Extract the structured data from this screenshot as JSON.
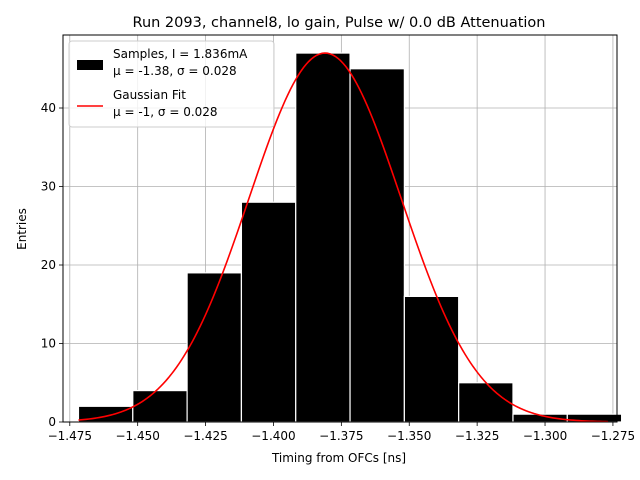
{
  "chart_data": {
    "type": "bar",
    "title": "Run 2093, channel8, lo gain, Pulse w/ 0.0 dB Attenuation",
    "xlabel": "Timing from OFCs [ns]",
    "ylabel": "Entries",
    "xlim": [
      -1.4775,
      -1.2735
    ],
    "ylim": [
      0,
      49.3
    ],
    "xticks": [
      -1.475,
      -1.45,
      -1.425,
      -1.4,
      -1.375,
      -1.35,
      -1.325,
      -1.3,
      -1.275
    ],
    "xtick_labels": [
      "−1.475",
      "−1.450",
      "−1.425",
      "−1.400",
      "−1.375",
      "−1.350",
      "−1.325",
      "−1.300",
      "−1.275"
    ],
    "yticks": [
      0,
      10,
      20,
      30,
      40
    ],
    "ytick_labels": [
      "0",
      "10",
      "20",
      "30",
      "40"
    ],
    "grid": true,
    "bin_edges": [
      -1.4718,
      -1.4518,
      -1.4318,
      -1.4118,
      -1.3918,
      -1.3718,
      -1.3518,
      -1.3318,
      -1.3118,
      -1.2918,
      -1.2718
    ],
    "counts": [
      2,
      4,
      19,
      28,
      47,
      45,
      16,
      5,
      1,
      1
    ],
    "fit": {
      "mu": -1.381,
      "sigma": 0.028,
      "amplitude": 47,
      "x_range": [
        -1.4718,
        -1.2768
      ]
    },
    "legend": {
      "placement": "upper left",
      "entries": [
        {
          "label_line1": "Samples, I = 1.836mA",
          "label_line2": "μ = -1.38, σ = 0.028",
          "color": "#000000",
          "kind": "patch"
        },
        {
          "label_line1": "Gaussian Fit",
          "label_line2": "μ = -1, σ = 0.028",
          "color": "#ff0000",
          "kind": "line"
        }
      ]
    },
    "colors": {
      "bars": "#000000",
      "bar_edge": "#ffffff",
      "fit": "#ff0000",
      "grid": "#b0b0b0"
    }
  }
}
